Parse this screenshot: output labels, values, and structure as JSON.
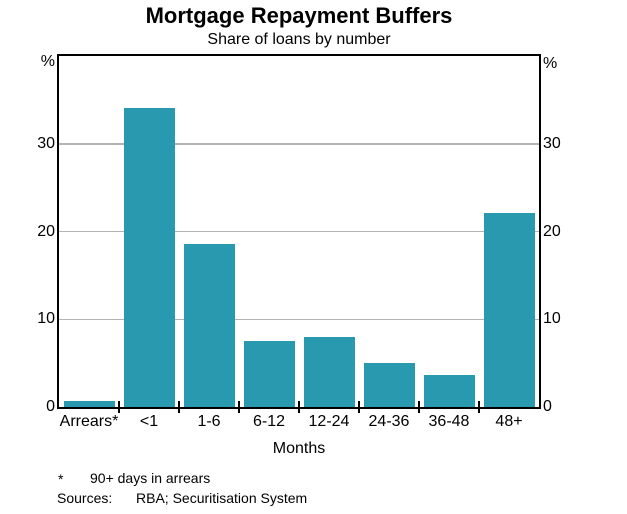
{
  "chart_data": {
    "type": "bar",
    "title": "Mortgage Repayment Buffers",
    "subtitle": "Share of loans by number",
    "unit_left": "%",
    "unit_right": "%",
    "categories": [
      "Arrears*",
      "<1",
      "1-6",
      "6-12",
      "12-24",
      "24-36",
      "36-48",
      "48+"
    ],
    "values": [
      0.7,
      34.1,
      18.6,
      7.5,
      8.0,
      5.0,
      3.6,
      22.1
    ],
    "xlabel": "Months",
    "ylim": [
      0,
      40
    ],
    "yticks": [
      0,
      10,
      20,
      30
    ],
    "gridlines": [
      10,
      20,
      30
    ],
    "grid": true,
    "legend_position": "none",
    "bar_color": "#2999B0",
    "gridline_color": "#B3B3B3",
    "axis_color": "#000000"
  },
  "footnotes": {
    "marker": "*",
    "text": "90+ days in arrears",
    "sources_label": "Sources:",
    "sources_text": "RBA; Securitisation System"
  }
}
